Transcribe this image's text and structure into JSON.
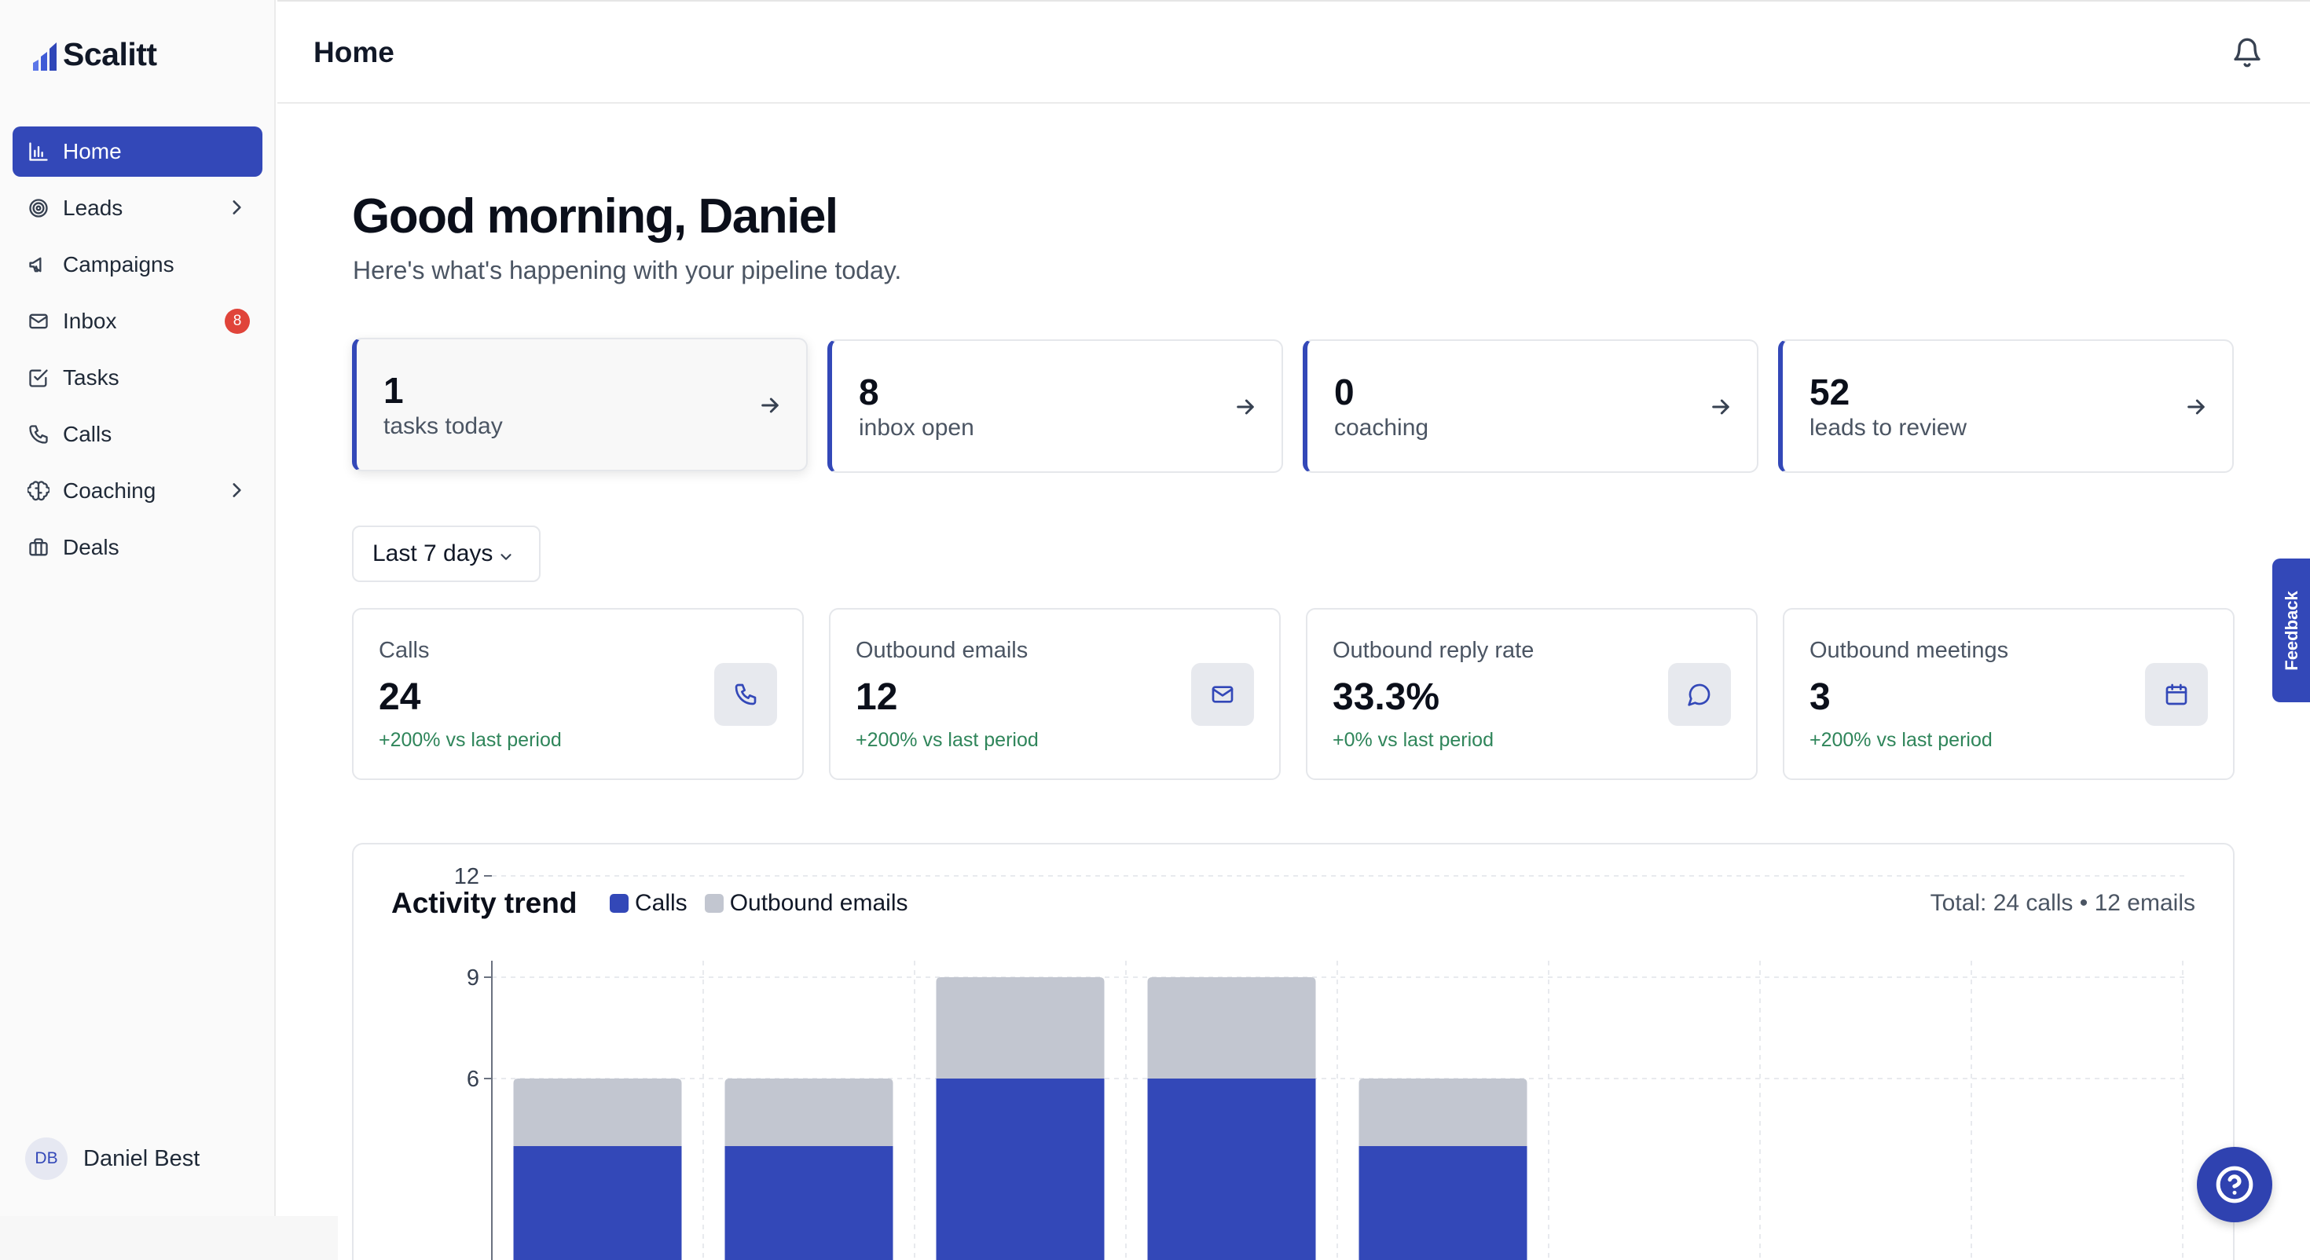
{
  "app": {
    "name": "Scalitt",
    "accent_color": "#3348b8"
  },
  "sidebar": {
    "items": [
      {
        "label": "Home",
        "icon": "bar-chart-icon",
        "active": true
      },
      {
        "label": "Leads",
        "icon": "target-icon",
        "has_submenu": true
      },
      {
        "label": "Campaigns",
        "icon": "megaphone-icon"
      },
      {
        "label": "Inbox",
        "icon": "mail-icon",
        "badge": "8"
      },
      {
        "label": "Tasks",
        "icon": "checkbox-icon"
      },
      {
        "label": "Calls",
        "icon": "phone-icon"
      },
      {
        "label": "Coaching",
        "icon": "brain-icon",
        "has_submenu": true
      },
      {
        "label": "Deals",
        "icon": "briefcase-icon"
      }
    ],
    "user": {
      "initials": "DB",
      "name": "Daniel Best"
    }
  },
  "header": {
    "title": "Home"
  },
  "main": {
    "greeting": "Good morning, Daniel",
    "subtitle": "Here's what's happening with your pipeline today.",
    "quick_cards": [
      {
        "value": "1",
        "label": "tasks today"
      },
      {
        "value": "8",
        "label": "inbox open"
      },
      {
        "value": "0",
        "label": "coaching"
      },
      {
        "value": "52",
        "label": "leads to review"
      }
    ],
    "period_select": "Last 7 days",
    "stats": [
      {
        "label": "Calls",
        "value": "24",
        "delta": "+200% vs last period",
        "icon": "phone-icon"
      },
      {
        "label": "Outbound emails",
        "value": "12",
        "delta": "+200% vs last period",
        "icon": "mail-icon"
      },
      {
        "label": "Outbound reply rate",
        "value": "33.3%",
        "delta": "+0% vs last period",
        "icon": "chat-bubble-icon"
      },
      {
        "label": "Outbound meetings",
        "value": "3",
        "delta": "+200% vs last period",
        "icon": "calendar-icon"
      }
    ]
  },
  "chart": {
    "title": "Activity trend",
    "total": "Total: 24 calls • 12 emails"
  },
  "chart_data": {
    "type": "bar",
    "stacked": true,
    "series": [
      {
        "name": "Calls",
        "color": "#3348b8",
        "values": [
          4,
          4,
          6,
          6,
          4
        ]
      },
      {
        "name": "Outbound emails",
        "color": "#c2c6d0",
        "values": [
          2,
          2,
          3,
          3,
          2
        ]
      }
    ],
    "y_ticks": [
      "12",
      "9",
      "6"
    ],
    "ylim": [
      0,
      12
    ],
    "grid": true,
    "legend_placement": "top-left"
  },
  "widgets": {
    "feedback_label": "Feedback"
  }
}
